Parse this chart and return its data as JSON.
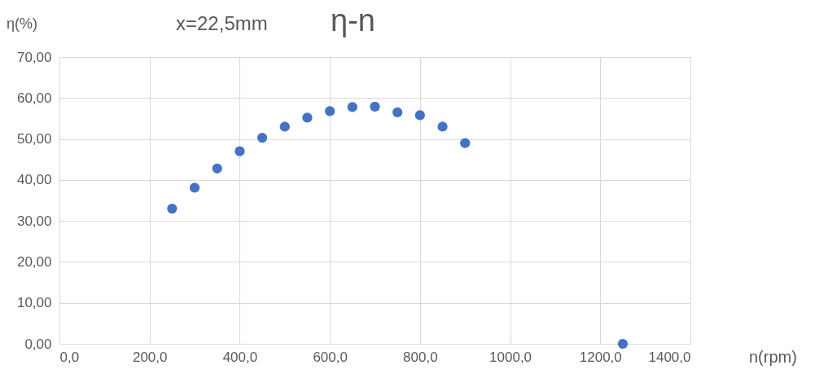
{
  "chart_data": {
    "type": "scatter",
    "title": "η-n",
    "annotations": [
      "x=22,5mm"
    ],
    "xlabel": "n(rpm)",
    "ylabel": "η(%)",
    "x": [
      250,
      300,
      350,
      400,
      450,
      500,
      550,
      600,
      650,
      700,
      750,
      800,
      850,
      900,
      1250
    ],
    "series": [
      {
        "color": "#4472c4",
        "values": [
          33.0,
          38.1,
          42.8,
          47.0,
          50.3,
          53.0,
          55.2,
          56.8,
          57.8,
          57.9,
          56.5,
          55.8,
          53.0,
          49.0,
          0.0
        ]
      }
    ],
    "xlim": [
      0,
      1400
    ],
    "ylim": [
      0,
      70
    ],
    "xticks": [
      {
        "value": 0,
        "label": "0,0"
      },
      {
        "value": 200,
        "label": "200,0"
      },
      {
        "value": 400,
        "label": "400,0"
      },
      {
        "value": 600,
        "label": "600,0"
      },
      {
        "value": 800,
        "label": "800,0"
      },
      {
        "value": 1000,
        "label": "1000,0"
      },
      {
        "value": 1200,
        "label": "1200,0"
      },
      {
        "value": 1400,
        "label": "1400,0"
      }
    ],
    "yticks": [
      {
        "value": 0,
        "label": "0,00"
      },
      {
        "value": 10,
        "label": "10,00"
      },
      {
        "value": 20,
        "label": "20,00"
      },
      {
        "value": 30,
        "label": "30,00"
      },
      {
        "value": 40,
        "label": "40,00"
      },
      {
        "value": 50,
        "label": "50,00"
      },
      {
        "value": 60,
        "label": "60,00"
      },
      {
        "value": 70,
        "label": "70,00"
      }
    ],
    "grid": true,
    "marker": "circle",
    "legend": false
  }
}
